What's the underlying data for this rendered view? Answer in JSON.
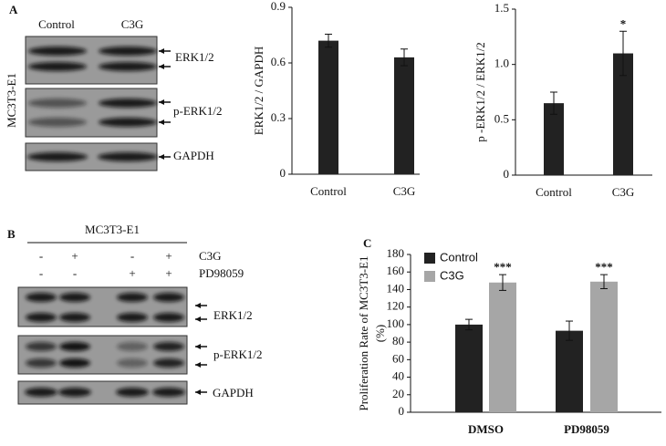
{
  "panels": {
    "A": {
      "label": "A",
      "lanes": [
        "Control",
        "C3G"
      ],
      "cell_line": "MC3T3-E1",
      "blots": [
        "ERK1/2",
        "p-ERK1/2",
        "GAPDH"
      ]
    },
    "B": {
      "label": "B",
      "cell_line": "MC3T3-E1",
      "treatments": [
        {
          "name": "C3G",
          "signs": [
            "-",
            "+",
            "-",
            "+"
          ]
        },
        {
          "name": "PD98059",
          "signs": [
            "-",
            "-",
            "+",
            "+"
          ]
        }
      ],
      "blots": [
        "ERK1/2",
        "p-ERK1/2",
        "GAPDH"
      ]
    },
    "C": {
      "label": "C"
    }
  },
  "chart_data": [
    {
      "type": "bar",
      "y_label": "ERK1/2 / GAPDH",
      "categories": [
        "Control",
        "C3G"
      ],
      "values": [
        0.72,
        0.63
      ],
      "errors": [
        0.035,
        0.045
      ],
      "color": "#222222",
      "ylim": [
        0,
        0.9
      ],
      "yticks": [
        0,
        0.3,
        0.6,
        0.9
      ]
    },
    {
      "type": "bar",
      "y_label": "p -ERK1/2 / ERK1/2",
      "categories": [
        "Control",
        "C3G"
      ],
      "values": [
        0.65,
        1.1
      ],
      "errors": [
        0.1,
        0.2
      ],
      "color": "#222222",
      "ylim": [
        0,
        1.5
      ],
      "yticks": [
        0,
        0.5,
        {
          "value": 1,
          "label": "1.0"
        },
        1.5
      ],
      "annotations": [
        "*"
      ]
    },
    {
      "type": "bar",
      "y_label": [
        "Proliferation Rate of MC3T3-E1",
        "(%)"
      ],
      "categories": [
        "DMSO",
        "PD98059"
      ],
      "series": [
        {
          "name": "Control",
          "color": "#222222",
          "values": [
            100,
            93
          ],
          "errors": [
            6,
            11
          ]
        },
        {
          "name": "C3G",
          "color": "#a6a6a6",
          "values": [
            148,
            149
          ],
          "errors": [
            9,
            8
          ]
        }
      ],
      "ylim": [
        0,
        180
      ],
      "yticks": [
        0,
        20,
        40,
        60,
        80,
        100,
        120,
        140,
        160,
        180
      ],
      "annotations": [
        "***",
        "***"
      ],
      "legend": "upper left"
    }
  ]
}
